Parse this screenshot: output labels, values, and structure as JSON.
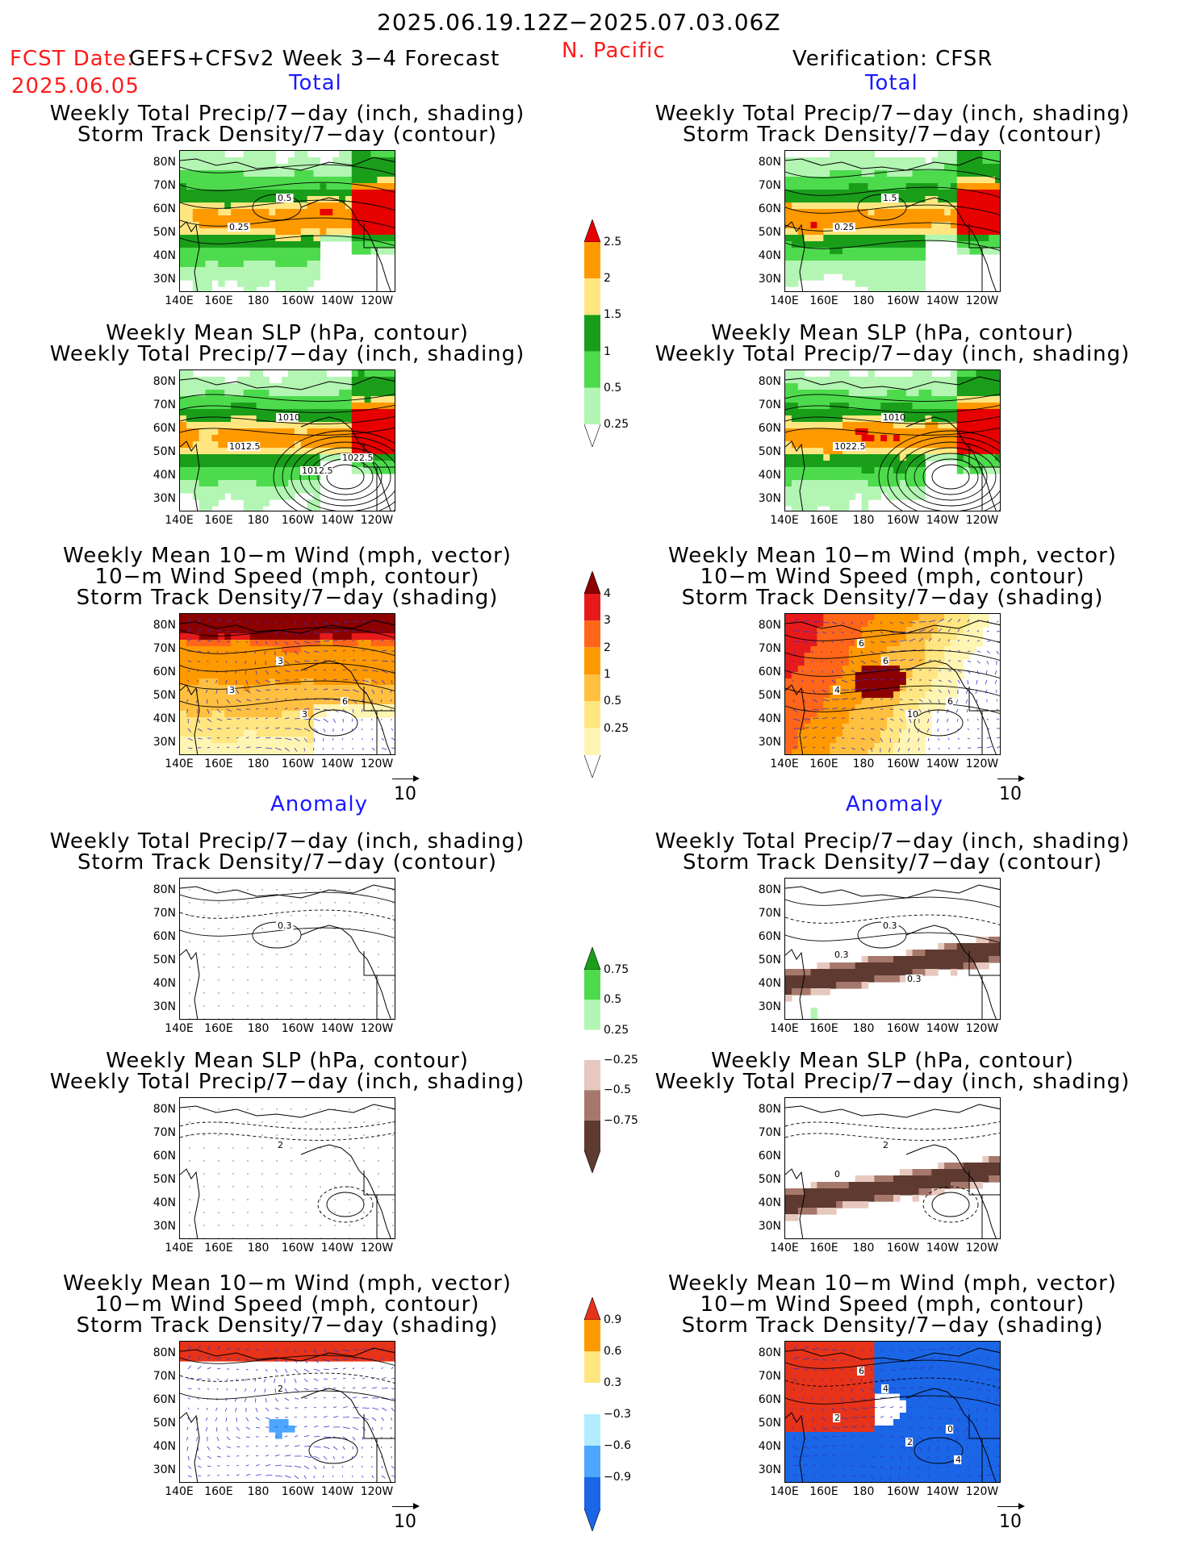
{
  "header": {
    "period": "2025.06.19.12Z−2025.07.03.06Z",
    "region": "N. Pacific",
    "fcst_prefix": "FCST Date:",
    "model": "GEFS+CFSv2 Week 3−4 Forecast",
    "fcst_date": "2025.06.05",
    "verification": "Verification: CFSR",
    "total_left": "Total",
    "total_right": "Total",
    "anomaly_left": "Anomaly",
    "anomaly_right": "Anomaly"
  },
  "titles": {
    "precip_track_1": "Weekly Total Precip/7−day (inch, shading)",
    "precip_track_2": "Storm Track Density/7−day (contour)",
    "slp_1": "Weekly Mean SLP (hPa, contour)",
    "slp_2": "Weekly Total Precip/7−day (inch, shading)",
    "wind_1": "Weekly Mean 10−m Wind (mph, vector)",
    "wind_2": "10−m Wind Speed (mph, contour)",
    "wind_3": "Storm Track Density/7−day (shading)"
  },
  "axes": {
    "lat": [
      "80N",
      "70N",
      "60N",
      "50N",
      "40N",
      "30N"
    ],
    "lon": [
      "140E",
      "160E",
      "180",
      "160W",
      "140W",
      "120W"
    ]
  },
  "vector_ref": "10",
  "contour_labels": {
    "p1": [
      "0.5",
      "0.25"
    ],
    "p2": [
      "1.5",
      "0.25"
    ],
    "p3": [
      "1010",
      "1012.5",
      "1012.5",
      "1022.5"
    ],
    "p4": [
      "1010",
      "1022.5"
    ],
    "p5": [
      "3",
      "3",
      "3",
      "6"
    ],
    "p6": [
      "6",
      "4",
      "10",
      "6",
      "6"
    ],
    "p7": [
      "0.3"
    ],
    "p8": [
      "0.3",
      "0.3",
      "0.3"
    ],
    "p9": [
      "2"
    ],
    "p10": [
      "2",
      "0"
    ],
    "p11": [
      "2"
    ],
    "p12": [
      "4",
      "2",
      "2",
      "0",
      "6",
      "4"
    ]
  },
  "colorbars": {
    "precip_total": {
      "labels": [
        "2.5",
        "2",
        "1.5",
        "1",
        "0.5",
        "0.25"
      ],
      "colors": [
        "#e60000",
        "#ff9900",
        "#ffe680",
        "#1a9e1a",
        "#4ddb4d",
        "#b3f5b3"
      ]
    },
    "track_total": {
      "labels": [
        "4",
        "3",
        "2",
        "1",
        "0.5",
        "0.25"
      ],
      "colors": [
        "#8c0000",
        "#e61a1a",
        "#ff6619",
        "#ff9900",
        "#ffbf40",
        "#ffe680",
        "#fff5b3"
      ]
    },
    "precip_anom": {
      "labels": [
        "0.75",
        "0.5",
        "0.25",
        "−0.25",
        "−0.5",
        "−0.75"
      ],
      "colors": [
        "#1a9e1a",
        "#4ddb4d",
        "#b3f5b3",
        "#ffffff",
        "#e6c8bf",
        "#a6786b",
        "#5e3a30"
      ]
    },
    "track_anom": {
      "labels": [
        "0.9",
        "0.6",
        "0.3",
        "−0.3",
        "−0.6",
        "−0.9"
      ],
      "colors": [
        "#e63319",
        "#ff9900",
        "#ffe680",
        "#ffffff",
        "#b3ecff",
        "#4da6ff",
        "#1a66e6"
      ]
    }
  }
}
